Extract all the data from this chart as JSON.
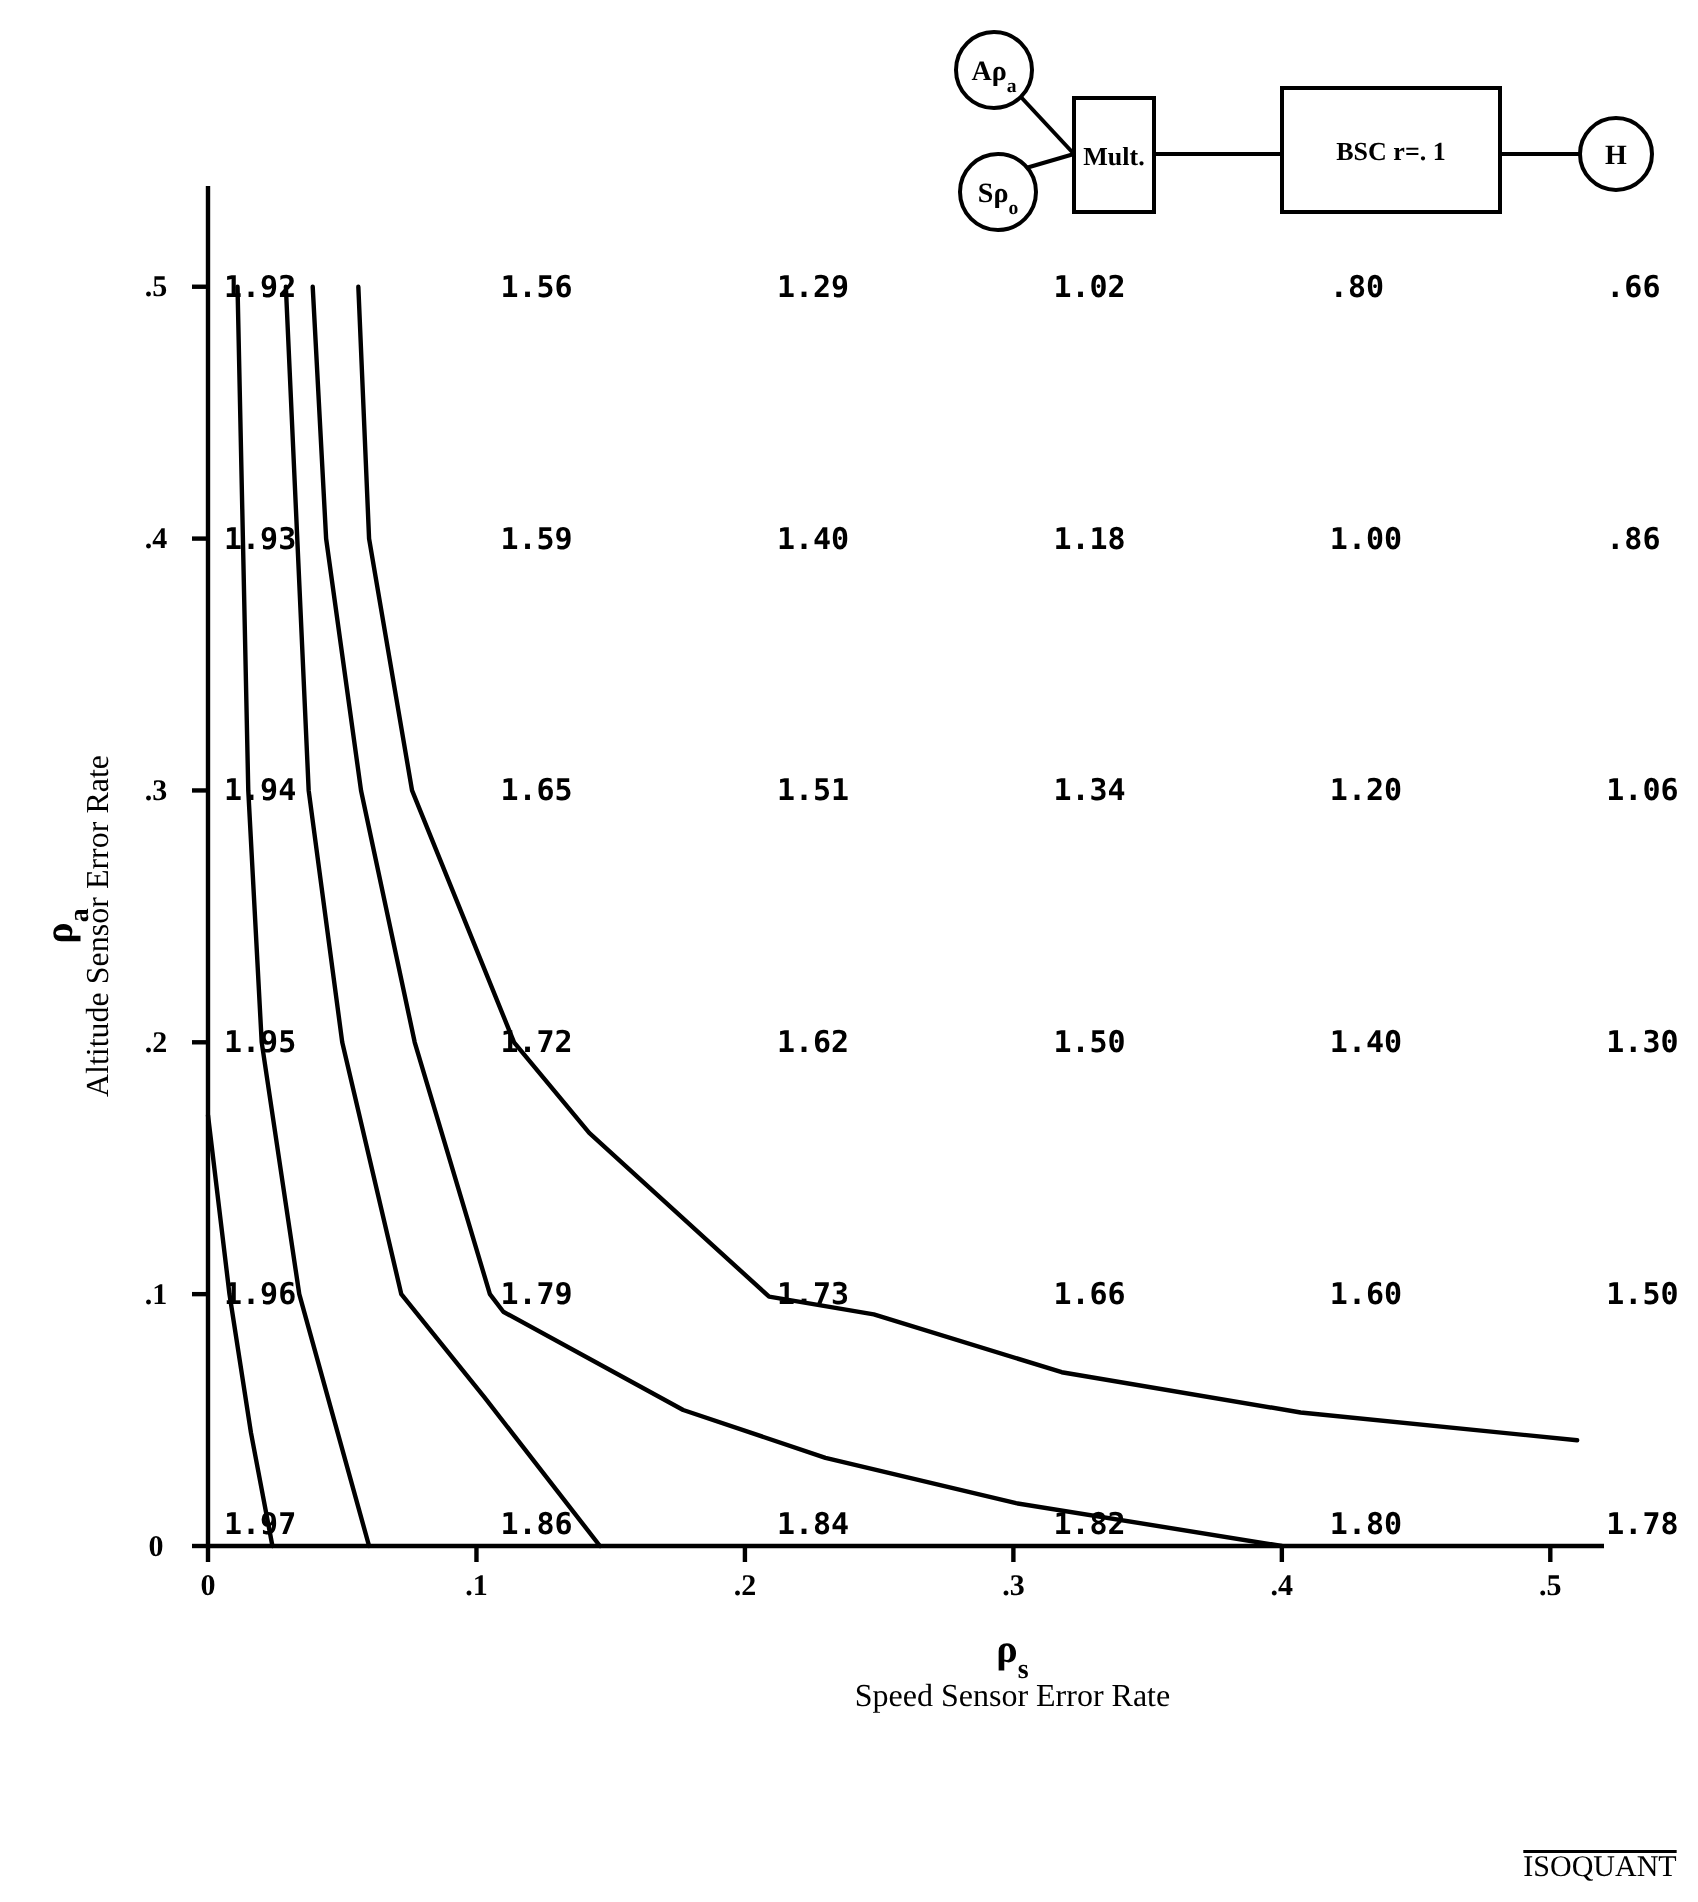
{
  "chart_data": {
    "type": "line",
    "xlabel": "ρ$_{s}$\nSpeed Sensor Error Rate",
    "ylabel": "ρ$_{a}$\nAltitude Sensor Error Rate",
    "xlim": [
      0,
      0.52
    ],
    "ylim": [
      0,
      0.54
    ],
    "xticks": [
      0,
      {
        "value": 0.1,
        "label": ".1"
      },
      {
        "value": 0.2,
        "label": ".2"
      },
      {
        "value": 0.3,
        "label": ".3"
      },
      {
        "value": 0.4,
        "label": ".4"
      },
      {
        "value": 0.5,
        "label": ".5"
      }
    ],
    "yticks": [
      0,
      {
        "value": 0.1,
        "label": ".1"
      },
      {
        "value": 0.2,
        "label": ".2"
      },
      {
        "value": 0.3,
        "label": ".3"
      },
      {
        "value": 0.4,
        "label": ".4"
      },
      {
        "value": 0.5,
        "label": ".5"
      }
    ],
    "series": [
      {
        "color": "#000000",
        "x": [
          0,
          0.008,
          0.016,
          0.024
        ],
        "values": [
          0.171,
          0.1,
          0.045,
          0
        ]
      },
      {
        "color": "#000000",
        "x": [
          0.011,
          0.015,
          0.02,
          0.034,
          0.047,
          0.06
        ],
        "values": [
          0.5,
          0.3,
          0.2,
          0.1,
          0.05,
          0
        ]
      },
      {
        "color": "#000000",
        "x": [
          0.029,
          0.0375,
          0.05,
          0.072,
          0.103,
          0.146
        ],
        "values": [
          0.5,
          0.3,
          0.2,
          0.1,
          0.059,
          0
        ]
      },
      {
        "color": "#000000",
        "x": [
          0.039,
          0.044,
          0.057,
          0.077,
          0.105,
          0.11,
          0.177,
          0.23,
          0.301,
          0.4
        ],
        "values": [
          0.5,
          0.4,
          0.3,
          0.2,
          0.1,
          0.093,
          0.054,
          0.035,
          0.017,
          0
        ]
      },
      {
        "color": "#000000",
        "x": [
          0.056,
          0.06,
          0.076,
          0.114,
          0.142,
          0.209,
          0.248,
          0.318,
          0.407,
          0.51
        ],
        "values": [
          0.5,
          0.4,
          0.3,
          0.2,
          0.164,
          0.099,
          0.092,
          0.069,
          0.053,
          0.042
        ]
      }
    ],
    "annotations": [
      "Aρ$_{a}$",
      "Sρ$_{o}$",
      "Mult.",
      "BSC r=. 1",
      "H",
      "ISOQUANT",
      "1.92",
      "1.56",
      "1.29",
      "1.02",
      ".80",
      ".66",
      "1.93",
      "1.59",
      "1.40",
      "1.18",
      "1.00",
      ".86",
      "1.94",
      "1.65",
      "1.51",
      "1.34",
      "1.20",
      "1.06",
      "1.95",
      "1.72",
      "1.62",
      "1.50",
      "1.40",
      "1.30",
      "1.96",
      "1.79",
      "1.73",
      "1.66",
      "1.60",
      "1.50",
      "1.97",
      "1.86",
      "1.84",
      "1.82",
      "1.80",
      "1.78"
    ]
  }
}
